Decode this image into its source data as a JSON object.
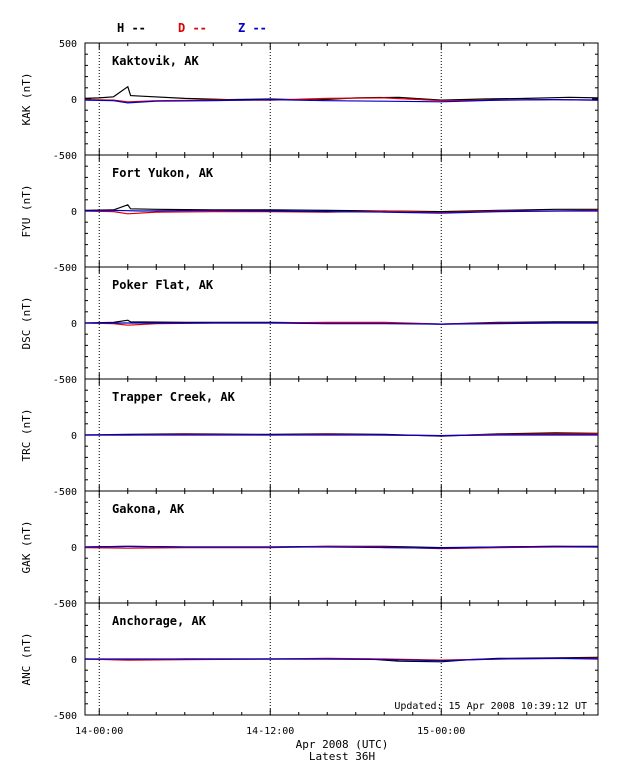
{
  "chart_data": {
    "type": "line",
    "legend": [
      {
        "label": "H --",
        "color": "#000000"
      },
      {
        "label": "D --",
        "color": "#e00000"
      },
      {
        "label": "Z --",
        "color": "#0000cc"
      }
    ],
    "xlabel": "Apr 2008 (UTC)",
    "xlabel2": "Latest 36H",
    "x_ticks": [
      "14-00:00",
      "14-12:00",
      "15-00:00"
    ],
    "x_range_hours": [
      -1,
      35
    ],
    "ylim": [
      -500,
      500
    ],
    "y_ticks": [
      "500",
      "0",
      "-500"
    ],
    "updated": "Updated: 15 Apr 2008 10:39:12 UT",
    "panels": [
      {
        "station": "Kaktovik, AK",
        "ylabel": "KAK (nT)",
        "series": [
          {
            "name": "H",
            "color": "#000000",
            "points": [
              [
                -1,
                5
              ],
              [
                0,
                10
              ],
              [
                1,
                20
              ],
              [
                2,
                110
              ],
              [
                2.2,
                30
              ],
              [
                3,
                25
              ],
              [
                6,
                5
              ],
              [
                9,
                -5
              ],
              [
                12,
                0
              ],
              [
                15,
                -10
              ],
              [
                18,
                10
              ],
              [
                21,
                15
              ],
              [
                24,
                -10
              ],
              [
                27,
                0
              ],
              [
                30,
                5
              ],
              [
                33,
                15
              ],
              [
                35,
                10
              ]
            ]
          },
          {
            "name": "D",
            "color": "#e00000",
            "points": [
              [
                -1,
                -5
              ],
              [
                1,
                -10
              ],
              [
                2,
                -25
              ],
              [
                4,
                -15
              ],
              [
                8,
                -10
              ],
              [
                12,
                -10
              ],
              [
                16,
                5
              ],
              [
                20,
                10
              ],
              [
                24,
                -15
              ],
              [
                28,
                -10
              ],
              [
                32,
                -5
              ],
              [
                35,
                -10
              ]
            ]
          },
          {
            "name": "Z",
            "color": "#0000cc",
            "points": [
              [
                -1,
                -10
              ],
              [
                1,
                -15
              ],
              [
                2,
                -35
              ],
              [
                4,
                -20
              ],
              [
                8,
                -15
              ],
              [
                12,
                -5
              ],
              [
                16,
                -15
              ],
              [
                20,
                -20
              ],
              [
                24,
                -25
              ],
              [
                28,
                -10
              ],
              [
                32,
                -5
              ],
              [
                35,
                -10
              ]
            ]
          }
        ]
      },
      {
        "station": "Fort Yukon, AK",
        "ylabel": "FYU (nT)",
        "series": [
          {
            "name": "H",
            "color": "#000000",
            "points": [
              [
                -1,
                5
              ],
              [
                1,
                10
              ],
              [
                2,
                55
              ],
              [
                2.2,
                20
              ],
              [
                4,
                15
              ],
              [
                8,
                10
              ],
              [
                12,
                10
              ],
              [
                16,
                5
              ],
              [
                20,
                0
              ],
              [
                24,
                -5
              ],
              [
                28,
                5
              ],
              [
                32,
                15
              ],
              [
                35,
                15
              ]
            ]
          },
          {
            "name": "D",
            "color": "#e00000",
            "points": [
              [
                -1,
                0
              ],
              [
                1,
                -5
              ],
              [
                2,
                -25
              ],
              [
                4,
                -10
              ],
              [
                8,
                -5
              ],
              [
                12,
                -5
              ],
              [
                16,
                -10
              ],
              [
                20,
                0
              ],
              [
                24,
                -15
              ],
              [
                28,
                0
              ],
              [
                32,
                0
              ],
              [
                35,
                5
              ]
            ]
          },
          {
            "name": "Z",
            "color": "#0000cc",
            "points": [
              [
                -1,
                0
              ],
              [
                1,
                5
              ],
              [
                3,
                0
              ],
              [
                8,
                5
              ],
              [
                12,
                0
              ],
              [
                16,
                -5
              ],
              [
                20,
                -10
              ],
              [
                24,
                -20
              ],
              [
                28,
                -5
              ],
              [
                32,
                0
              ],
              [
                35,
                0
              ]
            ]
          }
        ]
      },
      {
        "station": "Poker Flat, AK",
        "ylabel": "DSC (nT)",
        "series": [
          {
            "name": "H",
            "color": "#000000",
            "points": [
              [
                -1,
                0
              ],
              [
                1,
                5
              ],
              [
                2,
                25
              ],
              [
                2.2,
                10
              ],
              [
                6,
                5
              ],
              [
                12,
                5
              ],
              [
                16,
                0
              ],
              [
                20,
                0
              ],
              [
                24,
                -10
              ],
              [
                28,
                5
              ],
              [
                32,
                10
              ],
              [
                35,
                10
              ]
            ]
          },
          {
            "name": "D",
            "color": "#e00000",
            "points": [
              [
                -1,
                0
              ],
              [
                1,
                -5
              ],
              [
                2,
                -20
              ],
              [
                4,
                -5
              ],
              [
                8,
                0
              ],
              [
                12,
                0
              ],
              [
                16,
                5
              ],
              [
                20,
                5
              ],
              [
                24,
                -10
              ],
              [
                28,
                0
              ],
              [
                32,
                0
              ],
              [
                35,
                0
              ]
            ]
          },
          {
            "name": "Z",
            "color": "#0000cc",
            "points": [
              [
                -1,
                0
              ],
              [
                2,
                0
              ],
              [
                6,
                0
              ],
              [
                12,
                0
              ],
              [
                16,
                -5
              ],
              [
                20,
                -5
              ],
              [
                24,
                -10
              ],
              [
                28,
                -5
              ],
              [
                32,
                0
              ],
              [
                35,
                0
              ]
            ]
          }
        ]
      },
      {
        "station": "Trapper Creek, AK",
        "ylabel": "TRC (nT)",
        "series": [
          {
            "name": "H",
            "color": "#000000",
            "points": [
              [
                -1,
                0
              ],
              [
                2,
                5
              ],
              [
                6,
                10
              ],
              [
                12,
                5
              ],
              [
                16,
                10
              ],
              [
                20,
                5
              ],
              [
                24,
                -10
              ],
              [
                28,
                10
              ],
              [
                32,
                20
              ],
              [
                35,
                15
              ]
            ]
          },
          {
            "name": "D",
            "color": "#e00000",
            "points": [
              [
                -1,
                0
              ],
              [
                2,
                0
              ],
              [
                6,
                5
              ],
              [
                12,
                0
              ],
              [
                16,
                5
              ],
              [
                20,
                0
              ],
              [
                24,
                -5
              ],
              [
                28,
                5
              ],
              [
                32,
                10
              ],
              [
                35,
                10
              ]
            ]
          },
          {
            "name": "Z",
            "color": "#0000cc",
            "points": [
              [
                -1,
                0
              ],
              [
                2,
                0
              ],
              [
                6,
                0
              ],
              [
                12,
                0
              ],
              [
                16,
                0
              ],
              [
                20,
                0
              ],
              [
                24,
                -5
              ],
              [
                28,
                0
              ],
              [
                32,
                0
              ],
              [
                35,
                0
              ]
            ]
          }
        ]
      },
      {
        "station": "Gakona, AK",
        "ylabel": "GAK (nT)",
        "series": [
          {
            "name": "H",
            "color": "#000000",
            "points": [
              [
                -1,
                0
              ],
              [
                2,
                5
              ],
              [
                6,
                0
              ],
              [
                12,
                0
              ],
              [
                16,
                5
              ],
              [
                20,
                5
              ],
              [
                24,
                -5
              ],
              [
                28,
                0
              ],
              [
                32,
                5
              ],
              [
                35,
                5
              ]
            ]
          },
          {
            "name": "D",
            "color": "#e00000",
            "points": [
              [
                -1,
                -5
              ],
              [
                2,
                -10
              ],
              [
                6,
                -5
              ],
              [
                12,
                -5
              ],
              [
                16,
                5
              ],
              [
                20,
                0
              ],
              [
                24,
                -15
              ],
              [
                28,
                -5
              ],
              [
                32,
                0
              ],
              [
                35,
                0
              ]
            ]
          },
          {
            "name": "Z",
            "color": "#0000cc",
            "points": [
              [
                -1,
                0
              ],
              [
                2,
                5
              ],
              [
                6,
                0
              ],
              [
                12,
                0
              ],
              [
                16,
                0
              ],
              [
                20,
                -5
              ],
              [
                24,
                -10
              ],
              [
                28,
                0
              ],
              [
                32,
                5
              ],
              [
                35,
                0
              ]
            ]
          }
        ]
      },
      {
        "station": "Anchorage, AK",
        "ylabel": "ANC (nT)",
        "series": [
          {
            "name": "H",
            "color": "#000000",
            "points": [
              [
                -1,
                0
              ],
              [
                2,
                -5
              ],
              [
                6,
                0
              ],
              [
                12,
                0
              ],
              [
                16,
                0
              ],
              [
                19,
                0
              ],
              [
                21,
                -20
              ],
              [
                24,
                -25
              ],
              [
                26,
                -5
              ],
              [
                28,
                5
              ],
              [
                32,
                10
              ],
              [
                35,
                15
              ]
            ]
          },
          {
            "name": "D",
            "color": "#e00000",
            "points": [
              [
                -1,
                0
              ],
              [
                2,
                -10
              ],
              [
                6,
                -5
              ],
              [
                12,
                0
              ],
              [
                16,
                5
              ],
              [
                20,
                0
              ],
              [
                24,
                -10
              ],
              [
                28,
                0
              ],
              [
                32,
                5
              ],
              [
                35,
                5
              ]
            ]
          },
          {
            "name": "Z",
            "color": "#0000cc",
            "points": [
              [
                -1,
                0
              ],
              [
                2,
                0
              ],
              [
                6,
                0
              ],
              [
                12,
                0
              ],
              [
                16,
                0
              ],
              [
                20,
                -5
              ],
              [
                24,
                -15
              ],
              [
                28,
                0
              ],
              [
                32,
                5
              ],
              [
                35,
                0
              ]
            ]
          }
        ]
      }
    ]
  }
}
